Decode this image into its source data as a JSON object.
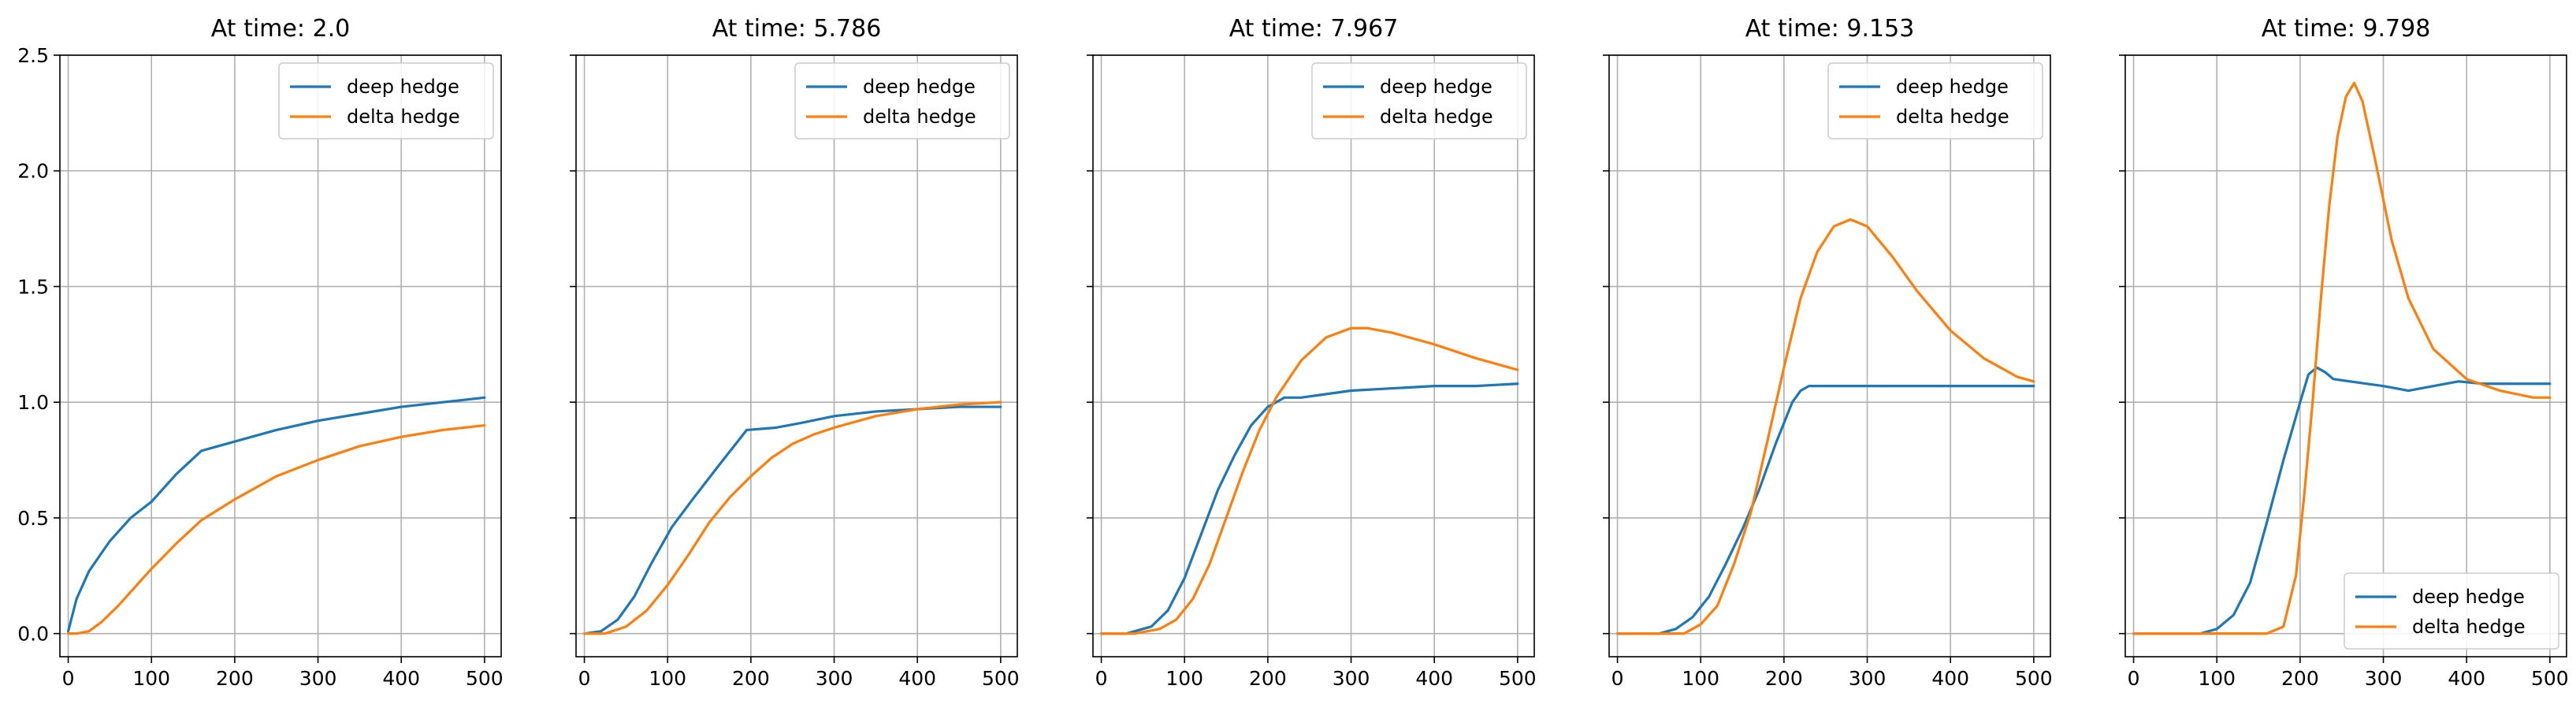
{
  "chart_data": [
    {
      "type": "line",
      "title": "At time: 2.0",
      "xlim": [
        -10,
        520
      ],
      "ylim": [
        -0.1,
        2.5
      ],
      "xticks": [
        0,
        100,
        200,
        300,
        400,
        500
      ],
      "yticks": [
        0.0,
        0.5,
        1.0,
        1.5,
        2.0,
        2.5
      ],
      "xtick_labels": [
        "0",
        "100",
        "200",
        "300",
        "400",
        "500"
      ],
      "ytick_labels": [
        "0.0",
        "0.5",
        "1.0",
        "1.5",
        "2.0",
        "2.5"
      ],
      "show_ytick_labels": true,
      "grid": true,
      "legend_loc": "upper-right",
      "series": [
        {
          "name": "deep hedge",
          "color": "#1f77b4",
          "x": [
            0,
            10,
            25,
            50,
            75,
            100,
            130,
            160,
            200,
            250,
            300,
            350,
            400,
            450,
            500
          ],
          "y": [
            0.01,
            0.15,
            0.27,
            0.4,
            0.5,
            0.57,
            0.69,
            0.79,
            0.83,
            0.88,
            0.92,
            0.95,
            0.98,
            1.0,
            1.02
          ]
        },
        {
          "name": "delta hedge",
          "color": "#ff7f0e",
          "x": [
            0,
            10,
            25,
            40,
            60,
            80,
            100,
            130,
            160,
            200,
            250,
            300,
            350,
            400,
            450,
            500
          ],
          "y": [
            0.0,
            0.0,
            0.01,
            0.05,
            0.12,
            0.2,
            0.28,
            0.39,
            0.49,
            0.58,
            0.68,
            0.75,
            0.81,
            0.85,
            0.88,
            0.9
          ]
        }
      ]
    },
    {
      "type": "line",
      "title": "At time: 5.786",
      "xlim": [
        -10,
        520
      ],
      "ylim": [
        -0.1,
        2.5
      ],
      "xticks": [
        0,
        100,
        200,
        300,
        400,
        500
      ],
      "yticks": [
        0.0,
        0.5,
        1.0,
        1.5,
        2.0,
        2.5
      ],
      "xtick_labels": [
        "0",
        "100",
        "200",
        "300",
        "400",
        "500"
      ],
      "ytick_labels": [
        "0.0",
        "0.5",
        "1.0",
        "1.5",
        "2.0",
        "2.5"
      ],
      "show_ytick_labels": false,
      "grid": true,
      "legend_loc": "upper-right",
      "series": [
        {
          "name": "deep hedge",
          "color": "#1f77b4",
          "x": [
            0,
            20,
            40,
            60,
            80,
            105,
            130,
            160,
            195,
            230,
            260,
            300,
            350,
            400,
            450,
            500
          ],
          "y": [
            0.0,
            0.01,
            0.06,
            0.16,
            0.3,
            0.46,
            0.58,
            0.72,
            0.88,
            0.89,
            0.91,
            0.94,
            0.96,
            0.97,
            0.98,
            0.98
          ]
        },
        {
          "name": "delta hedge",
          "color": "#ff7f0e",
          "x": [
            0,
            25,
            50,
            75,
            100,
            125,
            150,
            175,
            200,
            225,
            250,
            275,
            300,
            350,
            400,
            450,
            500
          ],
          "y": [
            0.0,
            0.0,
            0.03,
            0.1,
            0.21,
            0.34,
            0.48,
            0.59,
            0.68,
            0.76,
            0.82,
            0.86,
            0.89,
            0.94,
            0.97,
            0.99,
            1.0
          ]
        }
      ]
    },
    {
      "type": "line",
      "title": "At time: 7.967",
      "xlim": [
        -10,
        520
      ],
      "ylim": [
        -0.1,
        2.5
      ],
      "xticks": [
        0,
        100,
        200,
        300,
        400,
        500
      ],
      "yticks": [
        0.0,
        0.5,
        1.0,
        1.5,
        2.0,
        2.5
      ],
      "xtick_labels": [
        "0",
        "100",
        "200",
        "300",
        "400",
        "500"
      ],
      "ytick_labels": [
        "0.0",
        "0.5",
        "1.0",
        "1.5",
        "2.0",
        "2.5"
      ],
      "show_ytick_labels": false,
      "grid": true,
      "legend_loc": "upper-right",
      "series": [
        {
          "name": "deep hedge",
          "color": "#1f77b4",
          "x": [
            0,
            30,
            60,
            80,
            100,
            120,
            140,
            160,
            180,
            200,
            220,
            240,
            260,
            300,
            350,
            400,
            450,
            500
          ],
          "y": [
            0.0,
            0.0,
            0.03,
            0.1,
            0.24,
            0.43,
            0.62,
            0.77,
            0.9,
            0.98,
            1.02,
            1.02,
            1.03,
            1.05,
            1.06,
            1.07,
            1.07,
            1.08
          ]
        },
        {
          "name": "delta hedge",
          "color": "#ff7f0e",
          "x": [
            0,
            40,
            70,
            90,
            110,
            130,
            150,
            170,
            190,
            210,
            240,
            270,
            300,
            320,
            350,
            400,
            450,
            500
          ],
          "y": [
            0.0,
            0.0,
            0.02,
            0.06,
            0.15,
            0.3,
            0.5,
            0.7,
            0.88,
            1.02,
            1.18,
            1.28,
            1.32,
            1.32,
            1.3,
            1.25,
            1.19,
            1.14
          ]
        }
      ]
    },
    {
      "type": "line",
      "title": "At time: 9.153",
      "xlim": [
        -10,
        520
      ],
      "ylim": [
        -0.1,
        2.5
      ],
      "xticks": [
        0,
        100,
        200,
        300,
        400,
        500
      ],
      "yticks": [
        0.0,
        0.5,
        1.0,
        1.5,
        2.0,
        2.5
      ],
      "xtick_labels": [
        "0",
        "100",
        "200",
        "300",
        "400",
        "500"
      ],
      "ytick_labels": [
        "0.0",
        "0.5",
        "1.0",
        "1.5",
        "2.0",
        "2.5"
      ],
      "show_ytick_labels": false,
      "grid": true,
      "legend_loc": "upper-right",
      "series": [
        {
          "name": "deep hedge",
          "color": "#1f77b4",
          "x": [
            0,
            50,
            70,
            90,
            110,
            130,
            150,
            170,
            190,
            210,
            220,
            230,
            260,
            300,
            350,
            400,
            450,
            500
          ],
          "y": [
            0.0,
            0.0,
            0.02,
            0.07,
            0.16,
            0.3,
            0.45,
            0.62,
            0.82,
            1.0,
            1.05,
            1.07,
            1.07,
            1.07,
            1.07,
            1.07,
            1.07,
            1.07
          ]
        },
        {
          "name": "delta hedge",
          "color": "#ff7f0e",
          "x": [
            0,
            80,
            100,
            120,
            140,
            160,
            180,
            200,
            220,
            240,
            260,
            280,
            300,
            330,
            360,
            400,
            440,
            480,
            500
          ],
          "y": [
            0.0,
            0.0,
            0.04,
            0.12,
            0.3,
            0.52,
            0.83,
            1.15,
            1.45,
            1.65,
            1.76,
            1.79,
            1.76,
            1.63,
            1.48,
            1.31,
            1.19,
            1.11,
            1.09
          ]
        }
      ]
    },
    {
      "type": "line",
      "title": "At time: 9.798",
      "xlim": [
        -10,
        520
      ],
      "ylim": [
        -0.1,
        2.5
      ],
      "xticks": [
        0,
        100,
        200,
        300,
        400,
        500
      ],
      "yticks": [
        0.0,
        0.5,
        1.0,
        1.5,
        2.0,
        2.5
      ],
      "xtick_labels": [
        "0",
        "100",
        "200",
        "300",
        "400",
        "500"
      ],
      "ytick_labels": [
        "0.0",
        "0.5",
        "1.0",
        "1.5",
        "2.0",
        "2.5"
      ],
      "show_ytick_labels": false,
      "grid": true,
      "legend_loc": "lower-right",
      "series": [
        {
          "name": "deep hedge",
          "color": "#1f77b4",
          "x": [
            0,
            80,
            100,
            120,
            140,
            160,
            180,
            200,
            210,
            220,
            230,
            240,
            260,
            300,
            330,
            360,
            390,
            420,
            460,
            500
          ],
          "y": [
            0.0,
            0.0,
            0.02,
            0.08,
            0.22,
            0.48,
            0.75,
            1.0,
            1.12,
            1.15,
            1.13,
            1.1,
            1.09,
            1.07,
            1.05,
            1.07,
            1.09,
            1.08,
            1.08,
            1.08
          ]
        },
        {
          "name": "delta hedge",
          "color": "#ff7f0e",
          "x": [
            0,
            160,
            180,
            195,
            205,
            215,
            225,
            235,
            245,
            255,
            265,
            275,
            290,
            310,
            330,
            360,
            400,
            440,
            480,
            500
          ],
          "y": [
            0.0,
            0.0,
            0.03,
            0.25,
            0.6,
            1.0,
            1.45,
            1.85,
            2.15,
            2.32,
            2.38,
            2.3,
            2.05,
            1.7,
            1.45,
            1.23,
            1.1,
            1.05,
            1.02,
            1.02
          ]
        }
      ]
    }
  ]
}
